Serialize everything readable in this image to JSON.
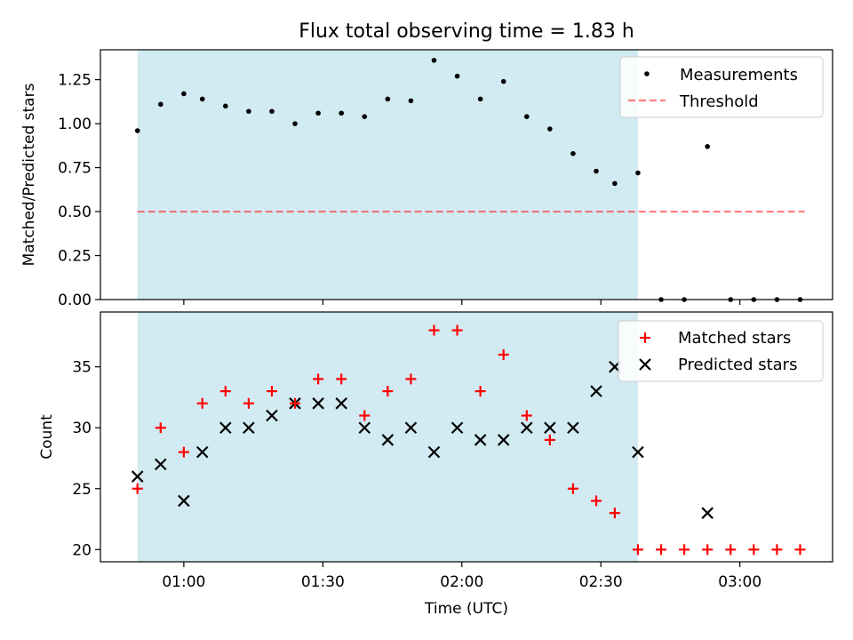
{
  "title": "Flux total observing time = 1.83 h",
  "colors": {
    "shade": "#add8e6",
    "threshold": "#ff0000",
    "measurement": "#000000",
    "matched": "#ff0000",
    "predicted": "#000000"
  },
  "chart_data": [
    {
      "type": "scatter",
      "panel": "top",
      "xlabel": "",
      "ylabel": "Matched/Predicted stars",
      "xlim": [
        "00:42",
        "03:20"
      ],
      "ylim": [
        0,
        1.42
      ],
      "yticks": [
        0.0,
        0.25,
        0.5,
        0.75,
        1.0,
        1.25
      ],
      "ytick_labels": [
        "0.00",
        "0.25",
        "0.50",
        "0.75",
        "1.00",
        "1.25"
      ],
      "shaded_interval": [
        "00:50",
        "02:38"
      ],
      "legend": {
        "placement": "top-right",
        "entries": [
          "Measurements",
          "Threshold"
        ]
      },
      "threshold": {
        "name": "Threshold",
        "value": 0.5,
        "x_range": [
          "00:50",
          "03:14"
        ],
        "style": "dashed"
      },
      "series": [
        {
          "name": "Measurements",
          "marker": "dot",
          "x": [
            "00:50",
            "00:55",
            "01:00",
            "01:04",
            "01:09",
            "01:14",
            "01:19",
            "01:24",
            "01:29",
            "01:34",
            "01:39",
            "01:44",
            "01:49",
            "01:54",
            "01:59",
            "02:04",
            "02:09",
            "02:14",
            "02:19",
            "02:24",
            "02:29",
            "02:33",
            "02:38",
            "02:43",
            "02:48",
            "02:53",
            "02:58",
            "03:03",
            "03:08",
            "03:13"
          ],
          "y": [
            0.96,
            1.11,
            1.17,
            1.14,
            1.1,
            1.07,
            1.07,
            1.0,
            1.06,
            1.06,
            1.04,
            1.14,
            1.13,
            1.36,
            1.27,
            1.14,
            1.24,
            1.04,
            0.97,
            0.83,
            0.73,
            0.66,
            0.72,
            0.0,
            0.0,
            0.87,
            0.0,
            0.0,
            0.0,
            0.0
          ]
        }
      ]
    },
    {
      "type": "scatter",
      "panel": "bottom",
      "xlabel": "Time (UTC)",
      "ylabel": "Count",
      "xlim": [
        "00:42",
        "03:20"
      ],
      "ylim": [
        19,
        39.5
      ],
      "xticks": [
        "01:00",
        "01:30",
        "02:00",
        "02:30",
        "03:00"
      ],
      "yticks": [
        20,
        25,
        30,
        35
      ],
      "ytick_labels": [
        "20",
        "25",
        "30",
        "35"
      ],
      "shaded_interval": [
        "00:50",
        "02:38"
      ],
      "legend": {
        "placement": "top-right",
        "entries": [
          "Matched stars",
          "Predicted stars"
        ]
      },
      "series": [
        {
          "name": "Matched stars",
          "marker": "+",
          "x": [
            "00:50",
            "00:55",
            "01:00",
            "01:04",
            "01:09",
            "01:14",
            "01:19",
            "01:24",
            "01:29",
            "01:34",
            "01:39",
            "01:44",
            "01:49",
            "01:54",
            "01:59",
            "02:04",
            "02:09",
            "02:14",
            "02:19",
            "02:24",
            "02:29",
            "02:33",
            "02:38",
            "02:43",
            "02:48",
            "02:53",
            "02:58",
            "03:03",
            "03:08",
            "03:13"
          ],
          "y": [
            25,
            30,
            28,
            32,
            33,
            32,
            33,
            32,
            34,
            34,
            31,
            33,
            34,
            38,
            38,
            33,
            36,
            31,
            29,
            25,
            24,
            23,
            20,
            20,
            20,
            20,
            20,
            20,
            20,
            20
          ]
        },
        {
          "name": "Predicted stars",
          "marker": "x",
          "x": [
            "00:50",
            "00:55",
            "01:00",
            "01:04",
            "01:09",
            "01:14",
            "01:19",
            "01:24",
            "01:29",
            "01:34",
            "01:39",
            "01:44",
            "01:49",
            "01:54",
            "01:59",
            "02:04",
            "02:09",
            "02:14",
            "02:19",
            "02:24",
            "02:29",
            "02:33",
            "02:38",
            "02:53"
          ],
          "y": [
            26,
            27,
            24,
            28,
            30,
            30,
            31,
            32,
            32,
            32,
            30,
            29,
            30,
            28,
            30,
            29,
            29,
            30,
            30,
            30,
            33,
            35,
            28,
            23
          ]
        }
      ]
    }
  ]
}
